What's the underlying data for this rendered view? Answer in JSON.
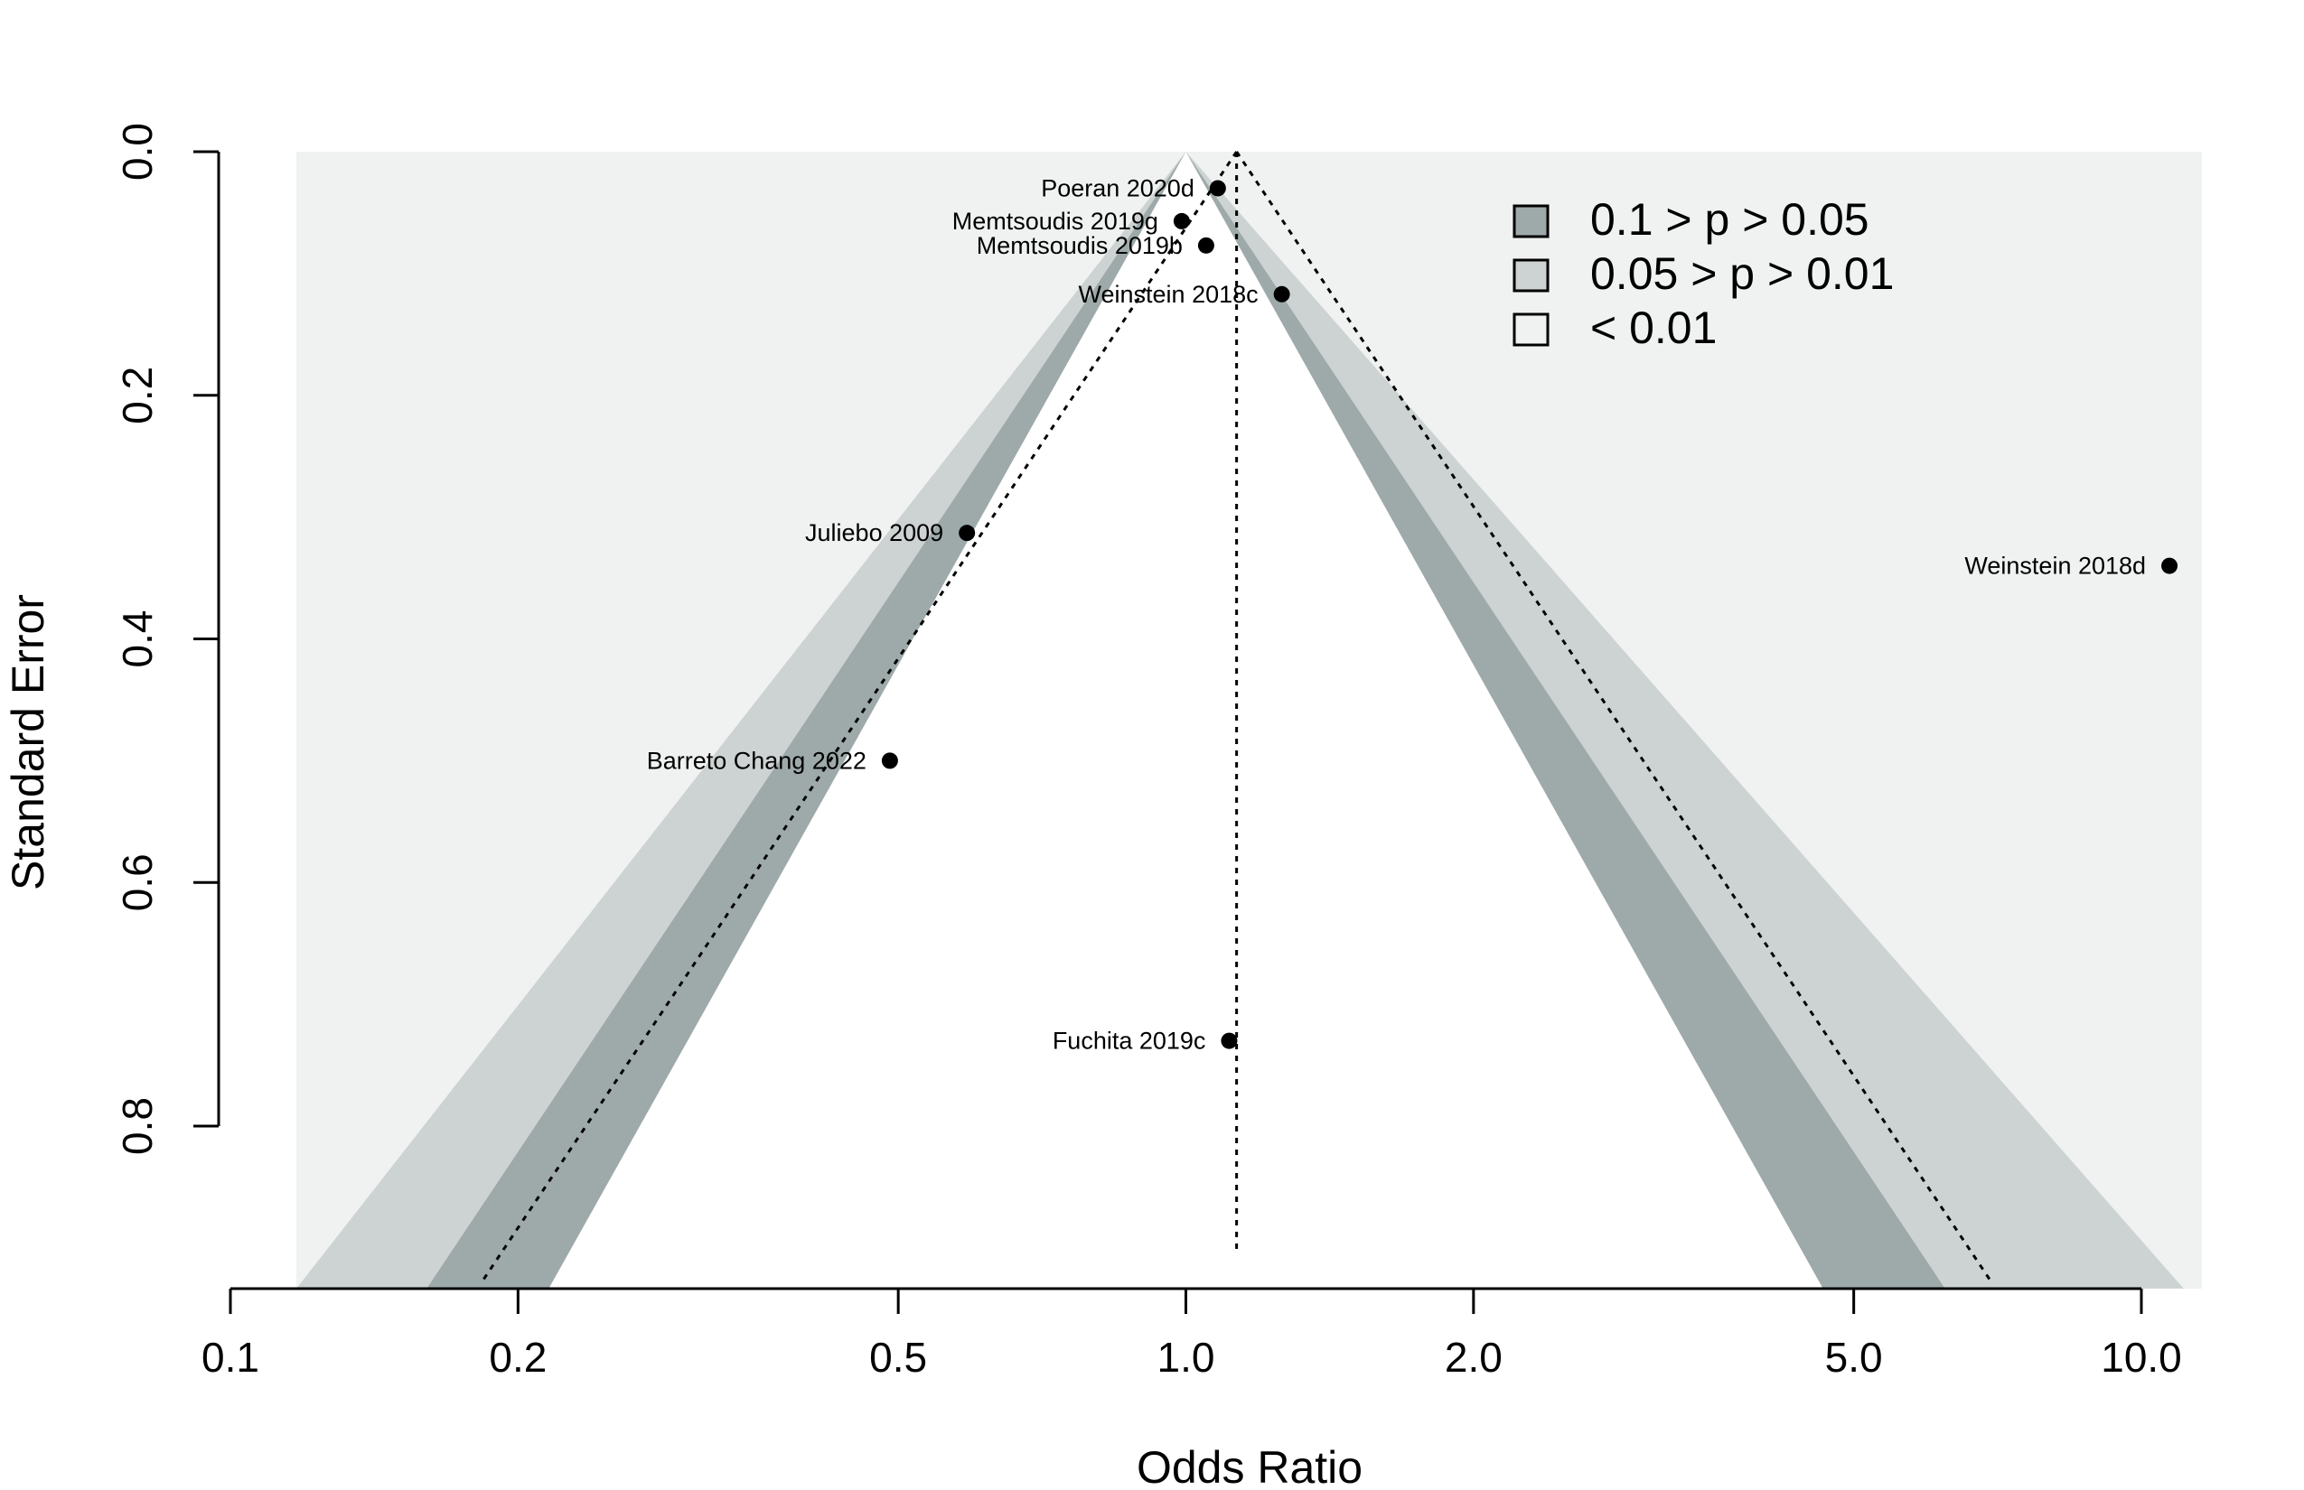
{
  "chart_data": {
    "type": "scatter",
    "subtype": "contour-enhanced funnel plot",
    "title": "",
    "xlabel": "Odds Ratio",
    "ylabel": "Standard Error",
    "x_scale": "log",
    "x_ticks": [
      0.1,
      0.2,
      0.5,
      1.0,
      2.0,
      5.0,
      10.0
    ],
    "x_tick_labels": [
      "0.1",
      "0.2",
      "0.5",
      "1.0",
      "2.0",
      "5.0",
      "10.0"
    ],
    "y_ticks": [
      0.0,
      0.2,
      0.4,
      0.6,
      0.8
    ],
    "y_tick_labels": [
      "0.0",
      "0.2",
      "0.4",
      "0.6",
      "0.8"
    ],
    "xlim": [
      0.1,
      11.0
    ],
    "ylim_reversed": [
      0.0,
      0.935
    ],
    "grid": false,
    "pooled_estimate_or": 1.13,
    "contour_center_or": 1.0,
    "legend_position": "top-right",
    "legend": [
      {
        "label": "0.1 > p > 0.05",
        "color": "#9eaaaa"
      },
      {
        "label": "0.05 > p > 0.01",
        "color": "#cdd3d2"
      },
      {
        "label": "< 0.01",
        "color": "#f0f2f2"
      }
    ],
    "colors": {
      "outer_region": "#f0f2f2",
      "p_01_005": "#9eaaaa",
      "p_005_001": "#cdd3d2",
      "inner_region": "#ffffff",
      "points": "#000000"
    },
    "points": [
      {
        "label": "Poeran 2020d",
        "or": 1.08,
        "se": 0.03
      },
      {
        "label": "Memtsoudis 2019g",
        "or": 0.99,
        "se": 0.057
      },
      {
        "label": "Memtsoudis 2019b",
        "or": 1.05,
        "se": 0.077
      },
      {
        "label": "Weinstein 2018c",
        "or": 1.26,
        "se": 0.117
      },
      {
        "label": "Juliebo 2009",
        "or": 0.59,
        "se": 0.313
      },
      {
        "label": "Weinstein 2018d",
        "or": 10.7,
        "se": 0.34
      },
      {
        "label": "Barreto Chang 2022",
        "or": 0.49,
        "se": 0.5
      },
      {
        "label": "Fuchita 2019c",
        "or": 1.11,
        "se": 0.73
      }
    ]
  }
}
